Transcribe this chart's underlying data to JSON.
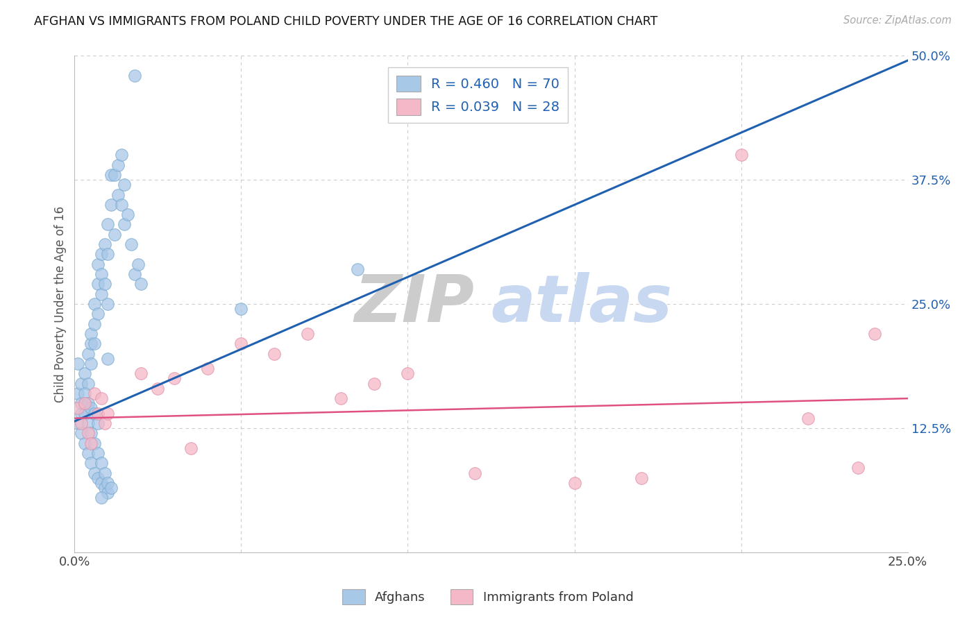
{
  "title": "AFGHAN VS IMMIGRANTS FROM POLAND CHILD POVERTY UNDER THE AGE OF 16 CORRELATION CHART",
  "source": "Source: ZipAtlas.com",
  "ylabel": "Child Poverty Under the Age of 16",
  "xlim": [
    0.0,
    0.25
  ],
  "ylim": [
    0.0,
    0.5
  ],
  "xticks": [
    0.0,
    0.05,
    0.1,
    0.15,
    0.2,
    0.25
  ],
  "xticklabels": [
    "0.0%",
    "",
    "",
    "",
    "",
    "25.0%"
  ],
  "yticks_right": [
    0.125,
    0.25,
    0.375,
    0.5
  ],
  "yticklabels_right": [
    "12.5%",
    "25.0%",
    "37.5%",
    "50.0%"
  ],
  "afghans_R": 0.46,
  "afghans_N": 70,
  "poland_R": 0.039,
  "poland_N": 28,
  "blue_color": "#a8c8e8",
  "pink_color": "#f4b8c8",
  "blue_line_color": "#2060b0",
  "pink_line_color": "#e05080",
  "legend_text_color": "#2060b0",
  "watermark_zip_color": "#cccccc",
  "watermark_atlas_color": "#c8d8f0",
  "background_color": "#ffffff",
  "grid_color": "#cccccc",
  "blue_line_x": [
    0.0,
    0.25
  ],
  "blue_line_y": [
    0.132,
    0.495
  ],
  "pink_line_x": [
    0.0,
    0.25
  ],
  "pink_line_y": [
    0.135,
    0.155
  ],
  "afghans_x": [
    0.001,
    0.001,
    0.002,
    0.002,
    0.003,
    0.003,
    0.004,
    0.004,
    0.005,
    0.005,
    0.005,
    0.006,
    0.006,
    0.006,
    0.007,
    0.007,
    0.007,
    0.008,
    0.008,
    0.008,
    0.009,
    0.009,
    0.01,
    0.01,
    0.01,
    0.011,
    0.011,
    0.012,
    0.012,
    0.013,
    0.013,
    0.014,
    0.014,
    0.015,
    0.015,
    0.016,
    0.017,
    0.018,
    0.019,
    0.02,
    0.001,
    0.002,
    0.003,
    0.004,
    0.005,
    0.006,
    0.007,
    0.008,
    0.009,
    0.01,
    0.002,
    0.003,
    0.004,
    0.005,
    0.006,
    0.007,
    0.008,
    0.009,
    0.01,
    0.011,
    0.003,
    0.004,
    0.005,
    0.006,
    0.007,
    0.05,
    0.085,
    0.018,
    0.008,
    0.01
  ],
  "afghans_y": [
    0.19,
    0.16,
    0.17,
    0.14,
    0.18,
    0.15,
    0.2,
    0.17,
    0.21,
    0.19,
    0.22,
    0.23,
    0.25,
    0.21,
    0.27,
    0.29,
    0.24,
    0.3,
    0.26,
    0.28,
    0.31,
    0.27,
    0.33,
    0.3,
    0.25,
    0.35,
    0.38,
    0.38,
    0.32,
    0.39,
    0.36,
    0.4,
    0.35,
    0.37,
    0.33,
    0.34,
    0.31,
    0.28,
    0.29,
    0.27,
    0.13,
    0.12,
    0.11,
    0.1,
    0.09,
    0.08,
    0.075,
    0.07,
    0.065,
    0.06,
    0.15,
    0.14,
    0.13,
    0.12,
    0.11,
    0.1,
    0.09,
    0.08,
    0.07,
    0.065,
    0.16,
    0.15,
    0.145,
    0.14,
    0.13,
    0.245,
    0.285,
    0.48,
    0.055,
    0.195
  ],
  "poland_x": [
    0.001,
    0.002,
    0.003,
    0.004,
    0.005,
    0.006,
    0.007,
    0.008,
    0.009,
    0.01,
    0.02,
    0.025,
    0.03,
    0.035,
    0.04,
    0.05,
    0.06,
    0.07,
    0.08,
    0.09,
    0.1,
    0.12,
    0.15,
    0.17,
    0.2,
    0.22,
    0.235,
    0.24
  ],
  "poland_y": [
    0.145,
    0.13,
    0.15,
    0.12,
    0.11,
    0.16,
    0.14,
    0.155,
    0.13,
    0.14,
    0.18,
    0.165,
    0.175,
    0.105,
    0.185,
    0.21,
    0.2,
    0.22,
    0.155,
    0.17,
    0.18,
    0.08,
    0.07,
    0.075,
    0.4,
    0.135,
    0.085,
    0.22
  ]
}
